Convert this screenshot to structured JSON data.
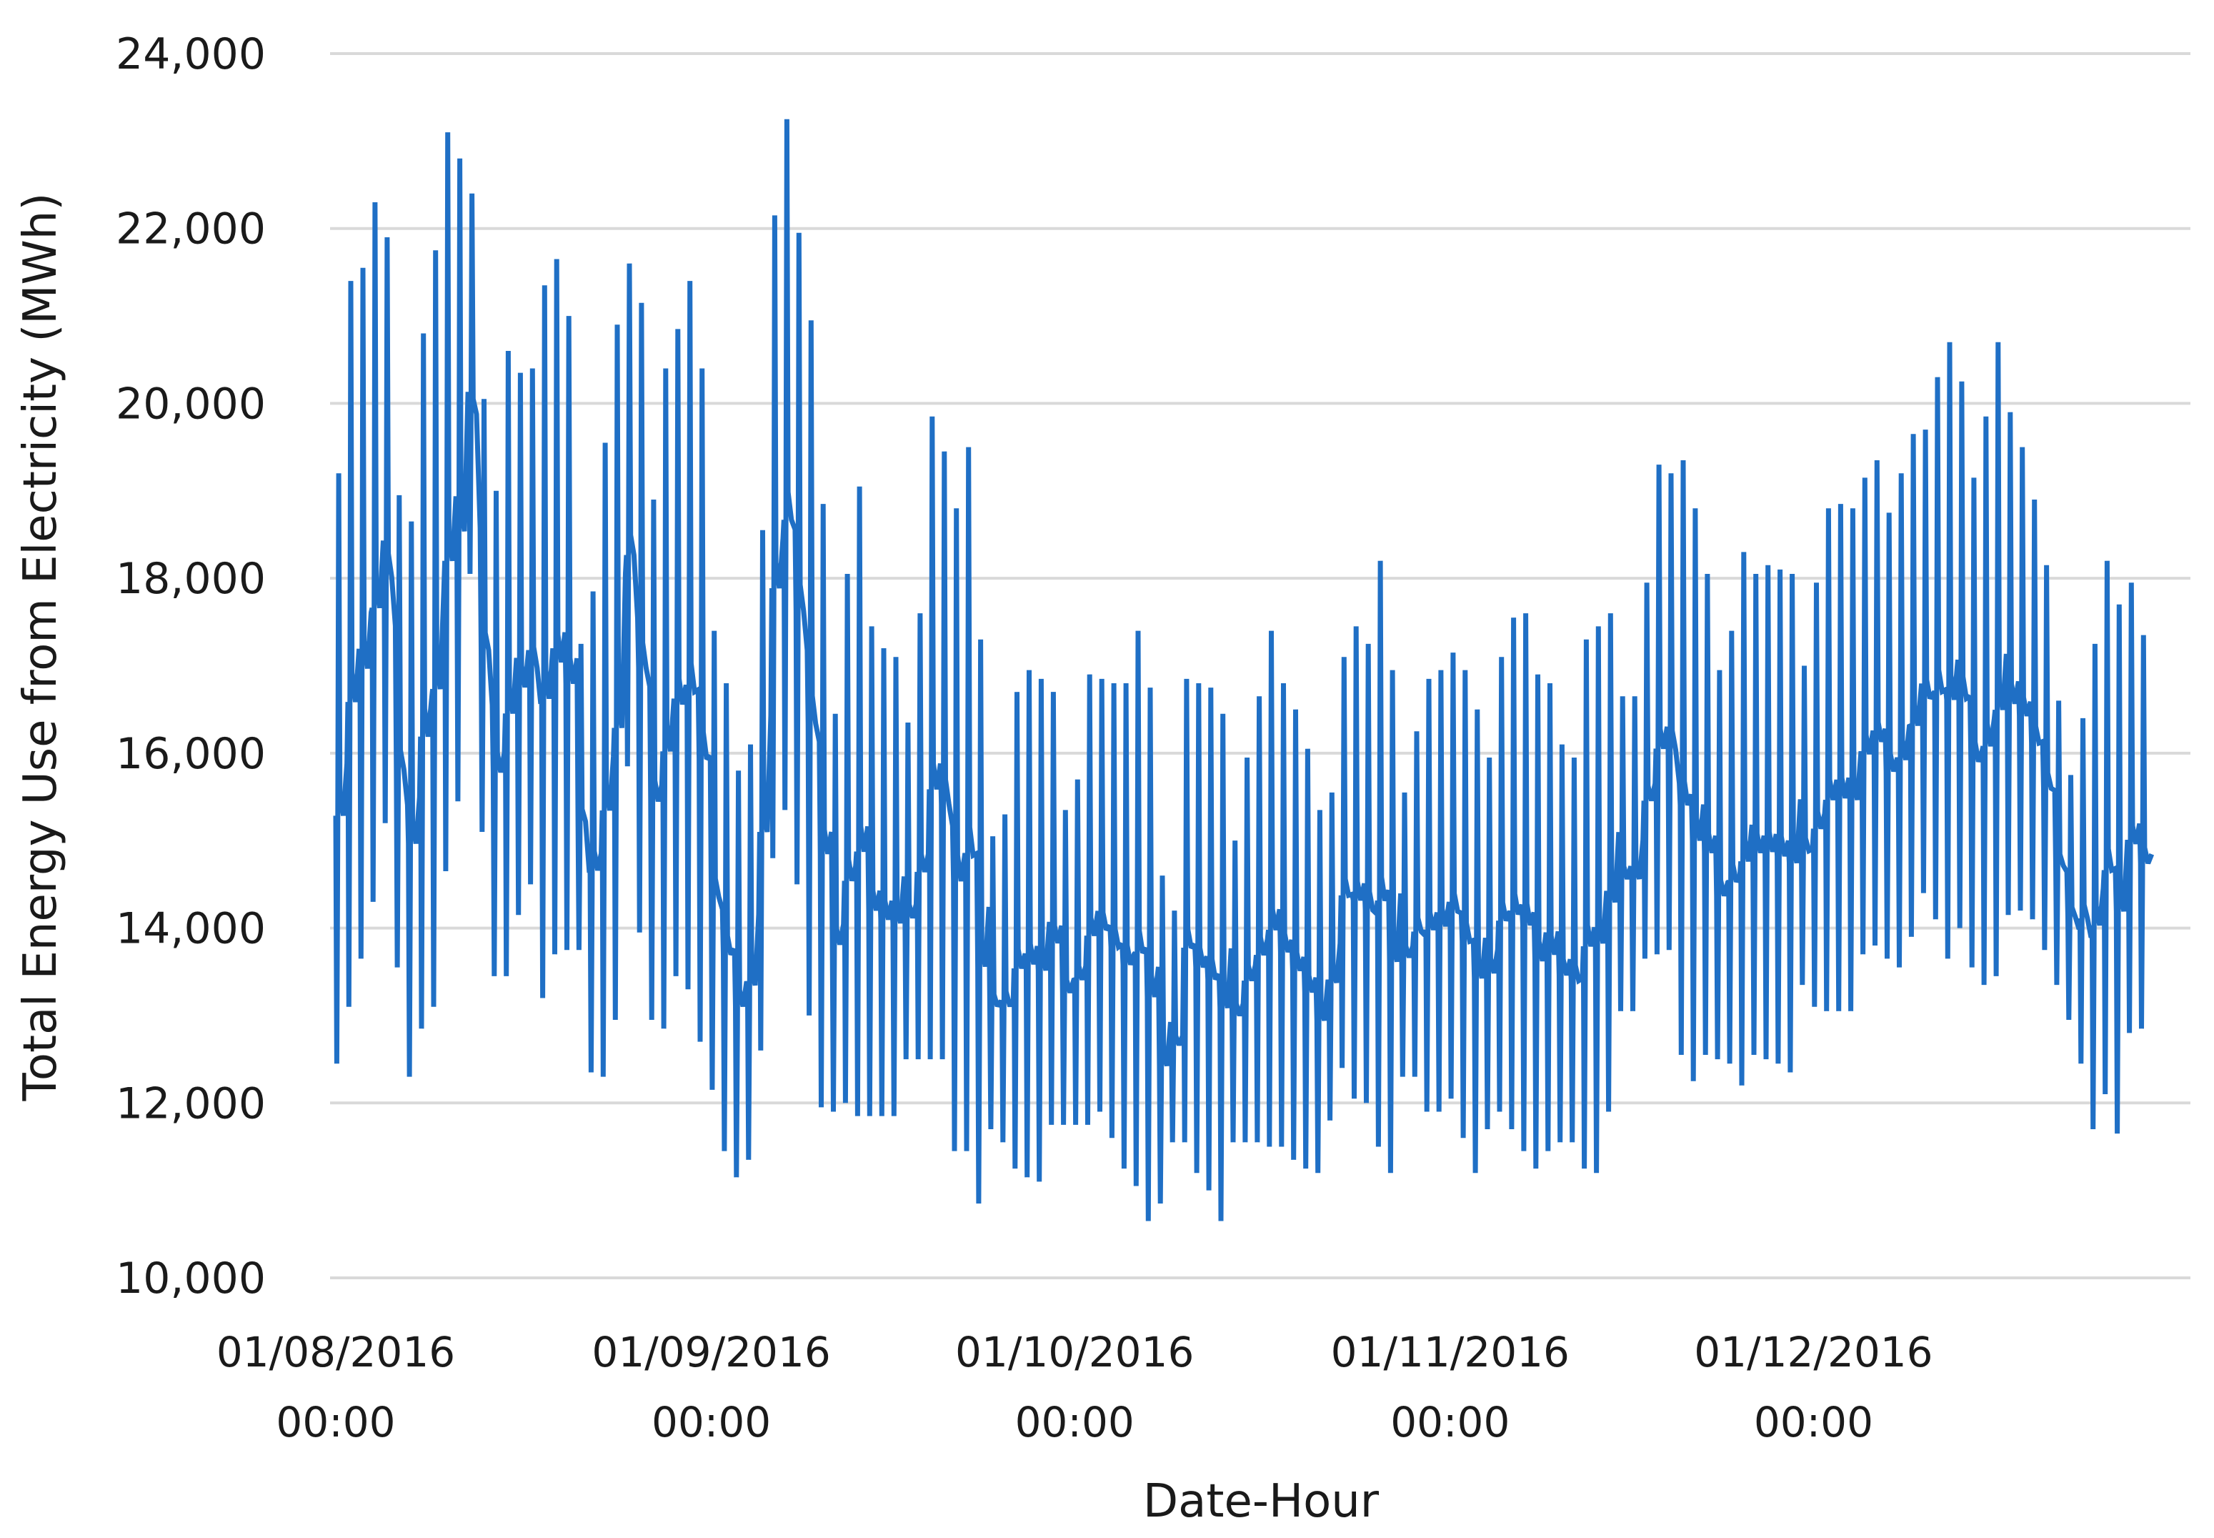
{
  "chart_data": {
    "type": "line",
    "title": "",
    "xlabel": "Date-Hour",
    "ylabel": "Total Energy Use from Electricity (MWh)",
    "ylim": [
      10000,
      24000
    ],
    "yticks": [
      10000,
      12000,
      14000,
      16000,
      18000,
      20000,
      22000,
      24000
    ],
    "ytick_labels": [
      "10,000",
      "12,000",
      "14,000",
      "16,000",
      "18,000",
      "20,000",
      "22,000",
      "24,000"
    ],
    "xlim": [
      "01/08/2016 00:00",
      "31/12/2016 23:00"
    ],
    "xticks": [
      {
        "date": "01/08/2016",
        "time": "00:00"
      },
      {
        "date": "01/09/2016",
        "time": "00:00"
      },
      {
        "date": "01/10/2016",
        "time": "00:00"
      },
      {
        "date": "01/11/2016",
        "time": "00:00"
      },
      {
        "date": "01/12/2016",
        "time": "00:00"
      }
    ],
    "grid": true,
    "legend": "none",
    "series_color": "#1f6fc5",
    "series": [
      {
        "x_unit": "daily (date), each day spans hourly values from min to max",
        "x": [
          "2016-08-01",
          "2016-08-02",
          "2016-08-03",
          "2016-08-04",
          "2016-08-05",
          "2016-08-06",
          "2016-08-07",
          "2016-08-08",
          "2016-08-09",
          "2016-08-10",
          "2016-08-11",
          "2016-08-12",
          "2016-08-13",
          "2016-08-14",
          "2016-08-15",
          "2016-08-16",
          "2016-08-17",
          "2016-08-18",
          "2016-08-19",
          "2016-08-20",
          "2016-08-21",
          "2016-08-22",
          "2016-08-23",
          "2016-08-24",
          "2016-08-25",
          "2016-08-26",
          "2016-08-27",
          "2016-08-28",
          "2016-08-29",
          "2016-08-30",
          "2016-08-31",
          "2016-09-01",
          "2016-09-02",
          "2016-09-03",
          "2016-09-04",
          "2016-09-05",
          "2016-09-06",
          "2016-09-07",
          "2016-09-08",
          "2016-09-09",
          "2016-09-10",
          "2016-09-11",
          "2016-09-12",
          "2016-09-13",
          "2016-09-14",
          "2016-09-15",
          "2016-09-16",
          "2016-09-17",
          "2016-09-18",
          "2016-09-19",
          "2016-09-20",
          "2016-09-21",
          "2016-09-22",
          "2016-09-23",
          "2016-09-24",
          "2016-09-25",
          "2016-09-26",
          "2016-09-27",
          "2016-09-28",
          "2016-09-29",
          "2016-09-30",
          "2016-10-01",
          "2016-10-02",
          "2016-10-03",
          "2016-10-04",
          "2016-10-05",
          "2016-10-06",
          "2016-10-07",
          "2016-10-08",
          "2016-10-09",
          "2016-10-10",
          "2016-10-11",
          "2016-10-12",
          "2016-10-13",
          "2016-10-14",
          "2016-10-15",
          "2016-10-16",
          "2016-10-17",
          "2016-10-18",
          "2016-10-19",
          "2016-10-20",
          "2016-10-21",
          "2016-10-22",
          "2016-10-23",
          "2016-10-24",
          "2016-10-25",
          "2016-10-26",
          "2016-10-27",
          "2016-10-28",
          "2016-10-29",
          "2016-10-30",
          "2016-10-31",
          "2016-11-01",
          "2016-11-02",
          "2016-11-03",
          "2016-11-04",
          "2016-11-05",
          "2016-11-06",
          "2016-11-07",
          "2016-11-08",
          "2016-11-09",
          "2016-11-10",
          "2016-11-11",
          "2016-11-12",
          "2016-11-13",
          "2016-11-14",
          "2016-11-15",
          "2016-11-16",
          "2016-11-17",
          "2016-11-18",
          "2016-11-19",
          "2016-11-20",
          "2016-11-21",
          "2016-11-22",
          "2016-11-23",
          "2016-11-24",
          "2016-11-25",
          "2016-11-26",
          "2016-11-27",
          "2016-11-28",
          "2016-11-29",
          "2016-11-30",
          "2016-12-01",
          "2016-12-02",
          "2016-12-03",
          "2016-12-04",
          "2016-12-05",
          "2016-12-06",
          "2016-12-07",
          "2016-12-08",
          "2016-12-09",
          "2016-12-10",
          "2016-12-11",
          "2016-12-12",
          "2016-12-13",
          "2016-12-14",
          "2016-12-15",
          "2016-12-16",
          "2016-12-17",
          "2016-12-18",
          "2016-12-19",
          "2016-12-20",
          "2016-12-21",
          "2016-12-22",
          "2016-12-23",
          "2016-12-24",
          "2016-12-25",
          "2016-12-26",
          "2016-12-27",
          "2016-12-28",
          "2016-12-29",
          "2016-12-30",
          "2016-12-31"
        ],
        "daily_min": [
          12450,
          13100,
          13650,
          14300,
          15200,
          13550,
          12300,
          12850,
          13100,
          14650,
          15450,
          18050,
          15100,
          13450,
          13450,
          14150,
          14500,
          13200,
          13700,
          13750,
          13750,
          12350,
          12300,
          12950,
          15850,
          13950,
          12950,
          12850,
          13450,
          13300,
          12700,
          12150,
          11450,
          11150,
          11350,
          12600,
          14800,
          15350,
          14500,
          13000,
          11950,
          11900,
          12000,
          11850,
          11850,
          11850,
          11850,
          12500,
          12500,
          12500,
          12500,
          11450,
          11450,
          10850,
          11700,
          11550,
          11250,
          11150,
          11100,
          11750,
          11750,
          11750,
          11750,
          11900,
          11600,
          11250,
          11050,
          10650,
          10850,
          11550,
          11550,
          11200,
          11000,
          10650,
          11550,
          11550,
          11550,
          11500,
          11500,
          11350,
          11250,
          11200,
          11800,
          12400,
          12050,
          12000,
          11500,
          11200,
          12300,
          12300,
          11900,
          11900,
          12050,
          11600,
          11200,
          11700,
          11900,
          11700,
          11450,
          11250,
          11450,
          11550,
          11550,
          11250,
          11200,
          11900,
          13050,
          13050,
          13650,
          13700,
          13750,
          12550,
          12250,
          12550,
          12500,
          12450,
          12200,
          12550,
          12500,
          12450,
          12350,
          13350,
          13100,
          13050,
          13050,
          13050,
          13700,
          13800,
          13650,
          13550,
          13900,
          14400,
          14100,
          13650,
          14000,
          13550,
          13350,
          13450,
          14150,
          14200,
          14100,
          13750,
          13350,
          12950,
          12450,
          11700,
          12100,
          11650,
          12800,
          12850,
          12700,
          12850
        ],
        "daily_max": [
          19200,
          21400,
          21550,
          22300,
          21900,
          18950,
          18650,
          20800,
          21750,
          23100,
          22800,
          22400,
          20050,
          19000,
          20600,
          20350,
          20400,
          21350,
          21650,
          21000,
          17250,
          17850,
          19550,
          20900,
          21600,
          21150,
          18900,
          20400,
          20850,
          21400,
          20400,
          17400,
          16800,
          15800,
          16100,
          18550,
          22150,
          23250,
          21950,
          20950,
          18850,
          16450,
          18050,
          19050,
          17450,
          17200,
          17100,
          16350,
          17600,
          19850,
          19450,
          18800,
          19500,
          17300,
          15050,
          15300,
          16700,
          16950,
          16850,
          16700,
          15350,
          15700,
          16900,
          16850,
          16800,
          16800,
          17400,
          16750,
          14600,
          14200,
          16850,
          16800,
          16750,
          16450,
          15000,
          15950,
          16650,
          17400,
          16800,
          16500,
          16050,
          15350,
          15550,
          17100,
          17450,
          17250,
          18200,
          16950,
          15550,
          16250,
          16850,
          16950,
          17150,
          16950,
          16500,
          15950,
          17100,
          17550,
          17600,
          16900,
          16800,
          16100,
          15950,
          17300,
          17450,
          17600,
          16650,
          16650,
          17950,
          19300,
          19200,
          19350,
          18800,
          18050,
          16950,
          17400,
          18300,
          18050,
          18150,
          18100,
          18050,
          17000,
          17950,
          18800,
          18850,
          18800,
          19150,
          19350,
          18750,
          19200,
          19650,
          19700,
          20300,
          20700,
          20250,
          19150,
          19850,
          20700,
          19900,
          19500,
          18900,
          18150,
          16600,
          15750,
          16400,
          17250,
          18200,
          17700,
          17950,
          17350
        ]
      }
    ]
  }
}
